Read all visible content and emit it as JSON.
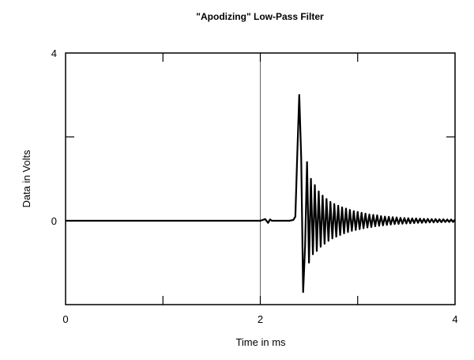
{
  "chart_data": {
    "type": "line",
    "title": "\"Apodizing\" Low-Pass Filter",
    "xlabel": "Time in ms",
    "ylabel": "Data in Volts",
    "xlim": [
      0,
      4
    ],
    "ylim": [
      -2,
      4
    ],
    "x_ticks": [
      0,
      1,
      2,
      3,
      4
    ],
    "x_tick_labels": [
      "0",
      "",
      "2",
      "",
      "4"
    ],
    "y_ticks": [
      -2,
      0,
      2,
      4
    ],
    "y_tick_labels": [
      "",
      "0",
      "",
      "4"
    ],
    "grid": false,
    "reference_lines": [
      {
        "axis": "x",
        "value": 2
      }
    ],
    "series": [
      {
        "name": "",
        "color": "#000000",
        "x": [
          0,
          2.0,
          2.05,
          2.08,
          2.1,
          2.12,
          2.3,
          2.34,
          2.36,
          2.38,
          2.4,
          2.42,
          2.44,
          2.46,
          2.48,
          2.5,
          2.52,
          2.54,
          2.56,
          2.58,
          2.6,
          2.62,
          2.64,
          2.66,
          2.68,
          2.7,
          2.72,
          2.74,
          2.76,
          2.78,
          2.8,
          2.82,
          2.84,
          2.86,
          2.88,
          2.9,
          2.92,
          2.94,
          2.96,
          2.98,
          3.0,
          3.02,
          3.04,
          3.06,
          3.08,
          3.1,
          3.12,
          3.14,
          3.16,
          3.18,
          3.2,
          3.22,
          3.24,
          3.26,
          3.28,
          3.3,
          3.32,
          3.34,
          3.36,
          3.38,
          3.4,
          3.42,
          3.44,
          3.46,
          3.48,
          3.5,
          3.52,
          3.54,
          3.56,
          3.58,
          3.6,
          3.62,
          3.64,
          3.66,
          3.68,
          3.7,
          3.72,
          3.74,
          3.76,
          3.78,
          3.8,
          3.82,
          3.84,
          3.86,
          3.88,
          3.9,
          3.92,
          3.94,
          3.96,
          3.98,
          4.0
        ],
        "y": [
          0,
          0,
          0.04,
          -0.05,
          0.03,
          0,
          0,
          0.02,
          0.1,
          1.6,
          3.0,
          1.5,
          -1.7,
          -0.6,
          1.4,
          -1.0,
          1.0,
          -0.8,
          0.85,
          -0.72,
          0.7,
          -0.62,
          0.6,
          -0.55,
          0.52,
          -0.48,
          0.45,
          -0.42,
          0.4,
          -0.38,
          0.36,
          -0.34,
          0.32,
          -0.3,
          0.29,
          -0.27,
          0.26,
          -0.24,
          0.23,
          -0.22,
          0.21,
          -0.2,
          0.19,
          -0.18,
          0.17,
          -0.16,
          0.15,
          -0.15,
          0.14,
          -0.13,
          0.13,
          -0.12,
          0.11,
          -0.11,
          0.1,
          -0.1,
          0.095,
          -0.09,
          0.085,
          -0.08,
          0.08,
          -0.075,
          0.07,
          -0.07,
          0.065,
          -0.065,
          0.06,
          -0.06,
          0.055,
          -0.055,
          0.055,
          -0.05,
          0.05,
          -0.05,
          0.045,
          -0.045,
          0.045,
          -0.04,
          0.04,
          -0.04,
          0.04,
          -0.035,
          0.035,
          -0.035,
          0.035,
          -0.03,
          0.03,
          -0.03,
          0.03,
          -0.03,
          0.03
        ]
      }
    ]
  }
}
